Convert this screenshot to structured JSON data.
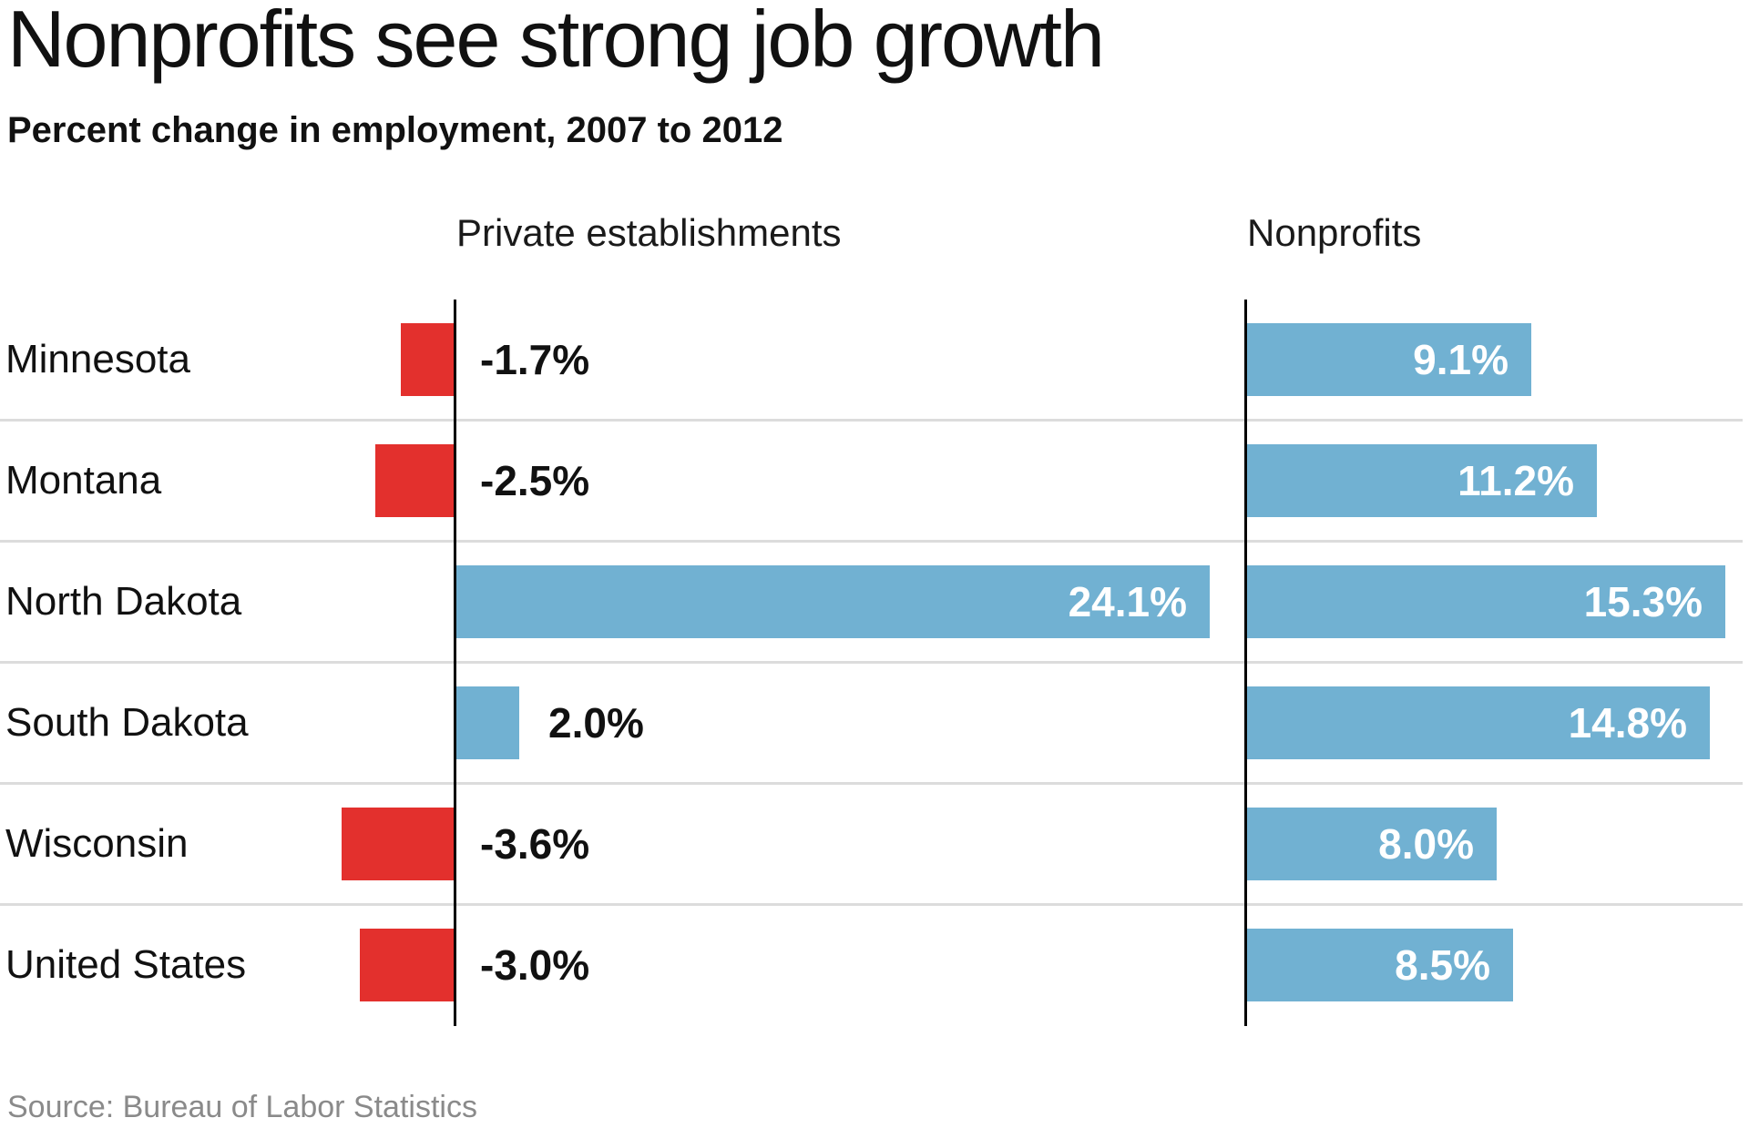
{
  "title": "Nonprofits see strong job growth",
  "subtitle": "Percent change in employment, 2007 to 2012",
  "source": "Source: Bureau of Labor Statistics",
  "panels": {
    "left": "Private establishments",
    "right": "Nonprofits"
  },
  "colors": {
    "positive": "#71b1d2",
    "negative": "#e3302d",
    "axis": "#000000",
    "separator": "#dcdcdc",
    "text": "#111111",
    "muted": "#8a8a8a",
    "bar_label_light": "#ffffff"
  },
  "chart_data": {
    "type": "bar",
    "orientation": "horizontal",
    "title": "Nonprofits see strong job growth",
    "subtitle": "Percent change in employment, 2007 to 2012",
    "unit": "percent",
    "categories": [
      "Minnesota",
      "Montana",
      "North Dakota",
      "South Dakota",
      "Wisconsin",
      "United States"
    ],
    "series": [
      {
        "name": "Private establishments",
        "values": [
          -1.7,
          -2.5,
          24.1,
          2.0,
          -3.6,
          -3.0
        ],
        "labels": [
          "-1.7%",
          "-2.5%",
          "24.1%",
          "2.0%",
          "-3.6%",
          "-3.0%"
        ]
      },
      {
        "name": "Nonprofits",
        "values": [
          9.1,
          11.2,
          15.3,
          14.8,
          8.0,
          8.5
        ],
        "labels": [
          "9.1%",
          "11.2%",
          "15.3%",
          "14.8%",
          "8.0%",
          "8.5%"
        ]
      }
    ],
    "grid": "row-separators",
    "legend": "column-headers",
    "positive_color": "#71b1d2",
    "negative_color": "#e3302d",
    "source": "Source: Bureau of Labor Statistics"
  }
}
